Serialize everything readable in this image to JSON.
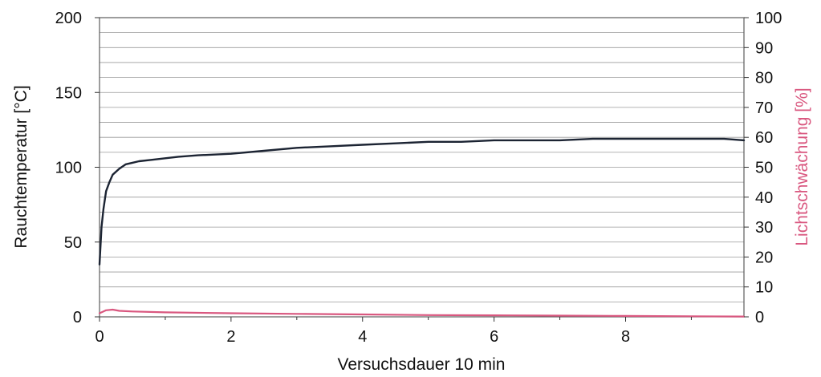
{
  "chart_data": {
    "type": "line",
    "title": "",
    "xlabel": "Versuchsdauer 10 min",
    "ylabel": "Rauchtemperatur [°C]",
    "y2label": "Lichtschwächung [%]",
    "xlim": [
      0,
      9.8
    ],
    "ylim": [
      0,
      200
    ],
    "y2lim": [
      0,
      100
    ],
    "x_ticks": [
      "0",
      "2",
      "4",
      "6",
      "8"
    ],
    "y_ticks": [
      "0",
      "50",
      "100",
      "150",
      "200"
    ],
    "y2_ticks": [
      "0",
      "10",
      "20",
      "30",
      "40",
      "50",
      "60",
      "70",
      "80",
      "90",
      "100"
    ],
    "grid": true,
    "legend": "none",
    "colors": {
      "temperature": "#1c2433",
      "light": "#d9577f",
      "grid": "#7a7a7a",
      "y2label": "#d9577f"
    },
    "series": [
      {
        "axis": "left",
        "x": [
          0,
          0.03,
          0.06,
          0.1,
          0.15,
          0.2,
          0.3,
          0.4,
          0.5,
          0.6,
          0.8,
          1.0,
          1.2,
          1.5,
          2.0,
          2.5,
          3.0,
          3.5,
          4.0,
          4.5,
          5.0,
          5.5,
          6.0,
          6.5,
          7.0,
          7.5,
          8.0,
          8.5,
          9.0,
          9.5,
          9.8
        ],
        "y": [
          35,
          60,
          72,
          84,
          90,
          95,
          99,
          102,
          103,
          104,
          105,
          106,
          107,
          108,
          109,
          111,
          113,
          114,
          115,
          116,
          117,
          117,
          118,
          118,
          118,
          119,
          119,
          119,
          119,
          119,
          118
        ]
      },
      {
        "axis": "right",
        "x": [
          0,
          0.1,
          0.2,
          0.3,
          0.5,
          1.0,
          2.0,
          3.0,
          4.0,
          5.0,
          6.0,
          7.0,
          8.0,
          9.0,
          9.8
        ],
        "y": [
          1.2,
          2.2,
          2.4,
          2.0,
          1.8,
          1.5,
          1.2,
          1.0,
          0.8,
          0.6,
          0.5,
          0.4,
          0.3,
          0.2,
          0.1
        ]
      }
    ]
  }
}
